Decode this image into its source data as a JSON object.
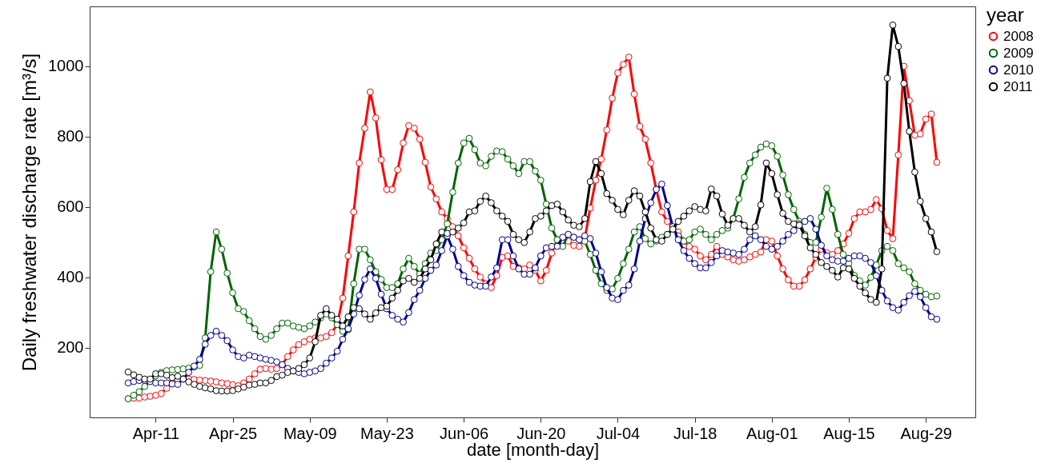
{
  "chart_data": {
    "type": "line",
    "xlabel": "date [month-day]",
    "ylabel": "Daily freshwater discharge rate [m³/s]",
    "legend_title": "year",
    "legend": "right",
    "marker": "circle",
    "line_style": "solid",
    "xlim": [
      "--03-30",
      "--09-07"
    ],
    "xticks": [
      {
        "value": "--04-11",
        "label": "Apr-11"
      },
      {
        "value": "--04-25",
        "label": "Apr-25"
      },
      {
        "value": "--05-09",
        "label": "May-09"
      },
      {
        "value": "--05-23",
        "label": "May-23"
      },
      {
        "value": "--06-06",
        "label": "Jun-06"
      },
      {
        "value": "--06-20",
        "label": "Jun-20"
      },
      {
        "value": "--07-04",
        "label": "Jul-04"
      },
      {
        "value": "--07-18",
        "label": "Jul-18"
      },
      {
        "value": "--08-01",
        "label": "Aug-01"
      },
      {
        "value": "--08-15",
        "label": "Aug-15"
      },
      {
        "value": "--08-29",
        "label": "Aug-29"
      }
    ],
    "ylim": [
      2,
      1170
    ],
    "yticks": [
      200,
      400,
      600,
      800,
      1000
    ],
    "x": [
      "--04-06",
      "--04-07",
      "--04-08",
      "--04-09",
      "--04-10",
      "--04-11",
      "--04-12",
      "--04-13",
      "--04-14",
      "--04-15",
      "--04-16",
      "--04-17",
      "--04-18",
      "--04-19",
      "--04-20",
      "--04-21",
      "--04-22",
      "--04-23",
      "--04-24",
      "--04-25",
      "--04-26",
      "--04-27",
      "--04-28",
      "--04-29",
      "--04-30",
      "--05-01",
      "--05-02",
      "--05-03",
      "--05-04",
      "--05-05",
      "--05-06",
      "--05-07",
      "--05-08",
      "--05-09",
      "--05-10",
      "--05-11",
      "--05-12",
      "--05-13",
      "--05-14",
      "--05-15",
      "--05-16",
      "--05-17",
      "--05-18",
      "--05-19",
      "--05-20",
      "--05-21",
      "--05-22",
      "--05-23",
      "--05-24",
      "--05-25",
      "--05-26",
      "--05-27",
      "--05-28",
      "--05-29",
      "--05-30",
      "--05-31",
      "--06-01",
      "--06-02",
      "--06-03",
      "--06-04",
      "--06-05",
      "--06-06",
      "--06-07",
      "--06-08",
      "--06-09",
      "--06-10",
      "--06-11",
      "--06-12",
      "--06-13",
      "--06-14",
      "--06-15",
      "--06-16",
      "--06-17",
      "--06-18",
      "--06-19",
      "--06-20",
      "--06-21",
      "--06-22",
      "--06-23",
      "--06-24",
      "--06-25",
      "--06-26",
      "--06-27",
      "--06-28",
      "--06-29",
      "--06-30",
      "--07-01",
      "--07-02",
      "--07-03",
      "--07-04",
      "--07-05",
      "--07-06",
      "--07-07",
      "--07-08",
      "--07-09",
      "--07-10",
      "--07-11",
      "--07-12",
      "--07-13",
      "--07-14",
      "--07-15",
      "--07-16",
      "--07-17",
      "--07-18",
      "--07-19",
      "--07-20",
      "--07-21",
      "--07-22",
      "--07-23",
      "--07-24",
      "--07-25",
      "--07-26",
      "--07-27",
      "--07-28",
      "--07-29",
      "--07-30",
      "--07-31",
      "--08-01",
      "--08-02",
      "--08-03",
      "--08-04",
      "--08-05",
      "--08-06",
      "--08-07",
      "--08-08",
      "--08-09",
      "--08-10",
      "--08-11",
      "--08-12",
      "--08-13",
      "--08-14",
      "--08-15",
      "--08-16",
      "--08-17",
      "--08-18",
      "--08-19",
      "--08-20",
      "--08-21",
      "--08-22",
      "--08-23",
      "--08-24",
      "--08-25",
      "--08-26",
      "--08-27",
      "--08-28",
      "--08-29",
      "--08-30",
      "--08-31"
    ],
    "series": [
      {
        "name": "2008",
        "color": "#ff0000",
        "values": [
          55,
          57,
          57,
          60,
          62,
          65,
          70,
          85,
          100,
          108,
          112,
          111,
          110,
          108,
          107,
          105,
          103,
          100,
          98,
          95,
          92,
          100,
          111,
          126,
          139,
          141,
          139,
          141,
          152,
          175,
          194,
          209,
          217,
          224,
          228,
          228,
          232,
          243,
          266,
          341,
          461,
          586,
          725,
          824,
          927,
          853,
          734,
          650,
          650,
          706,
          782,
          831,
          824,
          793,
          727,
          657,
          623,
          586,
          567,
          544,
          518,
          484,
          454,
          424,
          401,
          382,
          371,
          405,
          457,
          461,
          431,
          427,
          424,
          435,
          420,
          390,
          420,
          469,
          507,
          499,
          503,
          491,
          488,
          510,
          597,
          676,
          736,
          819,
          909,
          981,
          1005,
          1026,
          921,
          829,
          793,
          725,
          650,
          586,
          559,
          544,
          529,
          503,
          488,
          480,
          461,
          450,
          465,
          488,
          465,
          458,
          450,
          446,
          450,
          458,
          465,
          472,
          507,
          503,
          461,
          424,
          393,
          375,
          375,
          393,
          424,
          457,
          480,
          470,
          465,
          476,
          495,
          525,
          567,
          586,
          586,
          593,
          621,
          595,
          533,
          510,
          748,
          1000,
          902,
          804,
          808,
          850,
          864,
          727
        ]
      },
      {
        "name": "2009",
        "color": "#006400",
        "values": [
          55,
          65,
          75,
          90,
          105,
          120,
          130,
          135,
          137,
          138,
          140,
          142,
          145,
          150,
          228,
          416,
          529,
          480,
          412,
          356,
          311,
          303,
          277,
          254,
          232,
          224,
          235,
          254,
          270,
          270,
          262,
          258,
          254,
          262,
          273,
          285,
          296,
          285,
          266,
          247,
          251,
          382,
          480,
          480,
          450,
          416,
          394,
          371,
          371,
          382,
          424,
          454,
          431,
          409,
          439,
          469,
          476,
          507,
          552,
          642,
          725,
          782,
          795,
          763,
          725,
          717,
          744,
          759,
          757,
          736,
          717,
          695,
          729,
          729,
          702,
          676,
          608,
          540,
          507,
          488,
          522,
          514,
          507,
          503,
          465,
          420,
          382,
          363,
          367,
          397,
          439,
          480,
          529,
          544,
          510,
          495,
          503,
          514,
          522,
          540,
          518,
          503,
          507,
          529,
          537,
          522,
          507,
          522,
          533,
          540,
          567,
          623,
          684,
          725,
          748,
          770,
          779,
          774,
          744,
          691,
          635,
          593,
          559,
          522,
          499,
          499,
          571,
          653,
          593,
          522,
          465,
          440,
          405,
          390,
          378,
          400,
          435,
          476,
          488,
          476,
          439,
          427,
          416,
          382,
          363,
          352,
          345,
          347
        ]
      },
      {
        "name": "2010",
        "color": "#00008b",
        "values": [
          100,
          104,
          107,
          107,
          104,
          100,
          100,
          100,
          97,
          96,
          111,
          130,
          148,
          167,
          210,
          235,
          247,
          235,
          220,
          194,
          175,
          171,
          179,
          175,
          171,
          167,
          164,
          160,
          152,
          141,
          134,
          130,
          126,
          130,
          134,
          141,
          156,
          171,
          190,
          224,
          254,
          296,
          349,
          394,
          424,
          397,
          352,
          311,
          292,
          281,
          273,
          300,
          337,
          363,
          397,
          420,
          435,
          476,
          518,
          480,
          431,
          405,
          386,
          378,
          375,
          375,
          401,
          427,
          507,
          507,
          461,
          424,
          409,
          409,
          427,
          461,
          484,
          488,
          488,
          514,
          522,
          514,
          507,
          518,
          510,
          469,
          416,
          371,
          341,
          337,
          363,
          378,
          424,
          503,
          567,
          612,
          650,
          665,
          604,
          544,
          507,
          476,
          454,
          439,
          427,
          427,
          442,
          461,
          476,
          472,
          469,
          465,
          480,
          507,
          518,
          507,
          488,
          480,
          488,
          503,
          522,
          533,
          552,
          559,
          567,
          537,
          491,
          461,
          450,
          446,
          446,
          454,
          461,
          461,
          454,
          442,
          405,
          363,
          333,
          314,
          307,
          329,
          348,
          360,
          345,
          314,
          288,
          281
        ]
      },
      {
        "name": "2011",
        "color": "#000000",
        "values": [
          131,
          123,
          116,
          111,
          111,
          126,
          126,
          122,
          115,
          119,
          111,
          103,
          96,
          90,
          86,
          83,
          78,
          77,
          77,
          78,
          83,
          88,
          94,
          96,
          100,
          100,
          107,
          118,
          122,
          130,
          134,
          141,
          152,
          171,
          217,
          292,
          311,
          292,
          281,
          262,
          288,
          314,
          311,
          296,
          281,
          299,
          314,
          318,
          341,
          363,
          390,
          397,
          386,
          397,
          424,
          450,
          495,
          529,
          525,
          529,
          540,
          555,
          586,
          589,
          616,
          631,
          612,
          589,
          574,
          559,
          522,
          507,
          499,
          529,
          567,
          574,
          589,
          604,
          608,
          586,
          563,
          548,
          544,
          567,
          672,
          729,
          695,
          638,
          619,
          593,
          578,
          619,
          646,
          631,
          586,
          540,
          507,
          503,
          522,
          537,
          559,
          574,
          589,
          601,
          593,
          589,
          651,
          631,
          580,
          548,
          567,
          567,
          548,
          529,
          544,
          606,
          725,
          695,
          635,
          582,
          559,
          552,
          548,
          518,
          484,
          465,
          442,
          431,
          420,
          401,
          427,
          424,
          397,
          375,
          356,
          337,
          329,
          424,
          966,
          1117,
          1056,
          951,
          815,
          699,
          616,
          567,
          529,
          473
        ]
      }
    ]
  }
}
